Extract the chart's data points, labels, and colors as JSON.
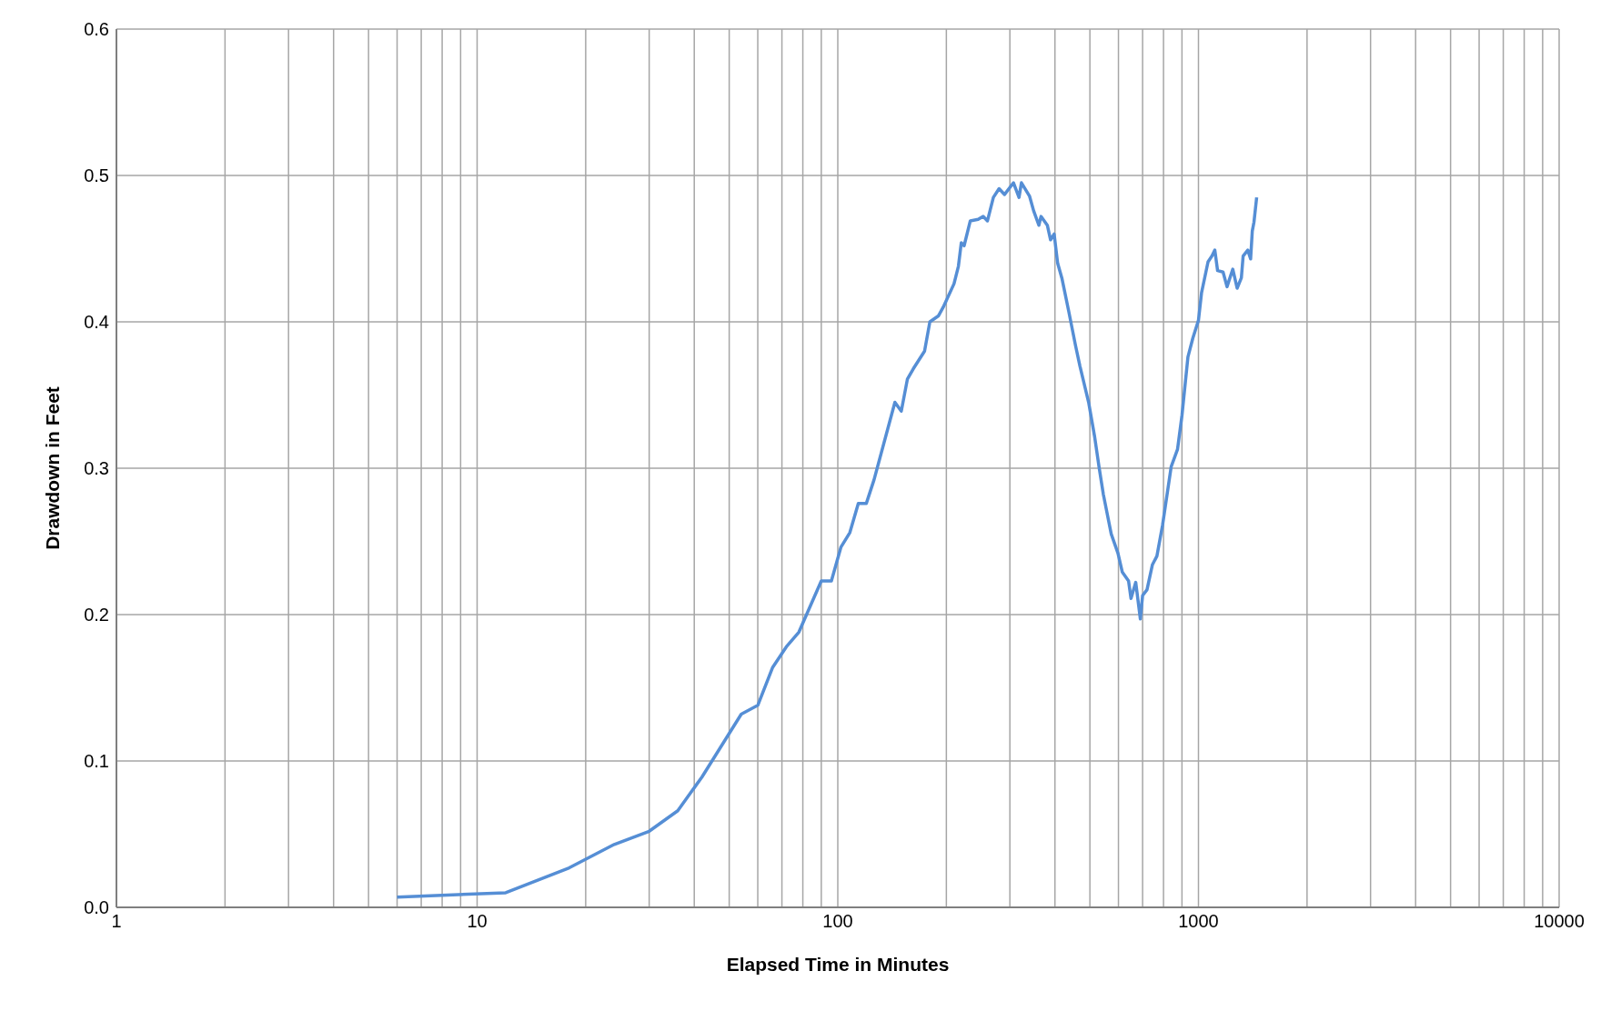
{
  "chart_data": {
    "type": "line",
    "xlabel": "Elapsed Time in Minutes",
    "ylabel": "Drawdown in Feet",
    "log": "x",
    "grid": true,
    "legend": false,
    "marker": "none",
    "line_style": "solid",
    "xlim": [
      1,
      10000
    ],
    "xticks": [
      1,
      {
        "value": 2,
        "label": null
      },
      {
        "value": 3,
        "label": null
      },
      {
        "value": 4,
        "label": null
      },
      {
        "value": 5,
        "label": null
      },
      {
        "value": 6,
        "label": null
      },
      {
        "value": 7,
        "label": null
      },
      {
        "value": 8,
        "label": null
      },
      {
        "value": 9,
        "label": null
      },
      10,
      {
        "value": 20,
        "label": null
      },
      {
        "value": 30,
        "label": null
      },
      {
        "value": 40,
        "label": null
      },
      {
        "value": 50,
        "label": null
      },
      {
        "value": 60,
        "label": null
      },
      {
        "value": 70,
        "label": null
      },
      {
        "value": 80,
        "label": null
      },
      {
        "value": 90,
        "label": null
      },
      100,
      {
        "value": 200,
        "label": null
      },
      {
        "value": 300,
        "label": null
      },
      {
        "value": 400,
        "label": null
      },
      {
        "value": 500,
        "label": null
      },
      {
        "value": 600,
        "label": null
      },
      {
        "value": 700,
        "label": null
      },
      {
        "value": 800,
        "label": null
      },
      {
        "value": 900,
        "label": null
      },
      1000,
      {
        "value": 2000,
        "label": null
      },
      {
        "value": 3000,
        "label": null
      },
      {
        "value": 4000,
        "label": null
      },
      {
        "value": 5000,
        "label": null
      },
      {
        "value": 6000,
        "label": null
      },
      {
        "value": 7000,
        "label": null
      },
      {
        "value": 8000,
        "label": null
      },
      {
        "value": 9000,
        "label": null
      },
      10000
    ],
    "ylim": [
      0,
      0.6
    ],
    "yticks": [
      {
        "value": 0,
        "label": "0.0"
      },
      {
        "value": 0.1,
        "label": "0.1"
      },
      {
        "value": 0.2,
        "label": "0.2"
      },
      {
        "value": 0.3,
        "label": "0.3"
      },
      {
        "value": 0.4,
        "label": "0.4"
      },
      {
        "value": 0.5,
        "label": "0.5"
      },
      {
        "value": 0.6,
        "label": "0.6"
      }
    ],
    "x": [
      6,
      12,
      18,
      24,
      30,
      36,
      42,
      54,
      60,
      66,
      72,
      78,
      90,
      96,
      102,
      108,
      114,
      120,
      126,
      144,
      150,
      156,
      162,
      174,
      180,
      190,
      196,
      210,
      216,
      220,
      224,
      233,
      245,
      253,
      260,
      270,
      280,
      290,
      307,
      318,
      323,
      340,
      349,
      361,
      366,
      381,
      389,
      398,
      407,
      418,
      437,
      456,
      469,
      496,
      515,
      530,
      545,
      573,
      598,
      615,
      640,
      650,
      670,
      690,
      700,
      720,
      745,
      767,
      795,
      840,
      875,
      900,
      935,
      965,
      1000,
      1020,
      1063,
      1090,
      1110,
      1130,
      1170,
      1200,
      1245,
      1280,
      1315,
      1330,
      1370,
      1395,
      1410,
      1425,
      1450
    ],
    "series": [
      {
        "color": "#558ed5",
        "values": [
          0.007,
          0.01,
          0.027,
          0.043,
          0.052,
          0.066,
          0.089,
          0.132,
          0.138,
          0.164,
          0.178,
          0.188,
          0.223,
          0.223,
          0.246,
          0.256,
          0.276,
          0.276,
          0.292,
          0.345,
          0.339,
          0.361,
          0.368,
          0.38,
          0.4,
          0.404,
          0.41,
          0.426,
          0.438,
          0.454,
          0.452,
          0.469,
          0.47,
          0.472,
          0.469,
          0.485,
          0.491,
          0.487,
          0.495,
          0.485,
          0.495,
          0.486,
          0.476,
          0.466,
          0.472,
          0.466,
          0.456,
          0.46,
          0.44,
          0.43,
          0.407,
          0.384,
          0.37,
          0.345,
          0.322,
          0.301,
          0.282,
          0.255,
          0.242,
          0.229,
          0.223,
          0.211,
          0.222,
          0.197,
          0.213,
          0.217,
          0.234,
          0.24,
          0.261,
          0.301,
          0.313,
          0.336,
          0.376,
          0.389,
          0.401,
          0.42,
          0.441,
          0.445,
          0.449,
          0.435,
          0.434,
          0.424,
          0.436,
          0.423,
          0.43,
          0.445,
          0.449,
          0.443,
          0.462,
          0.468,
          0.485
        ]
      }
    ]
  }
}
